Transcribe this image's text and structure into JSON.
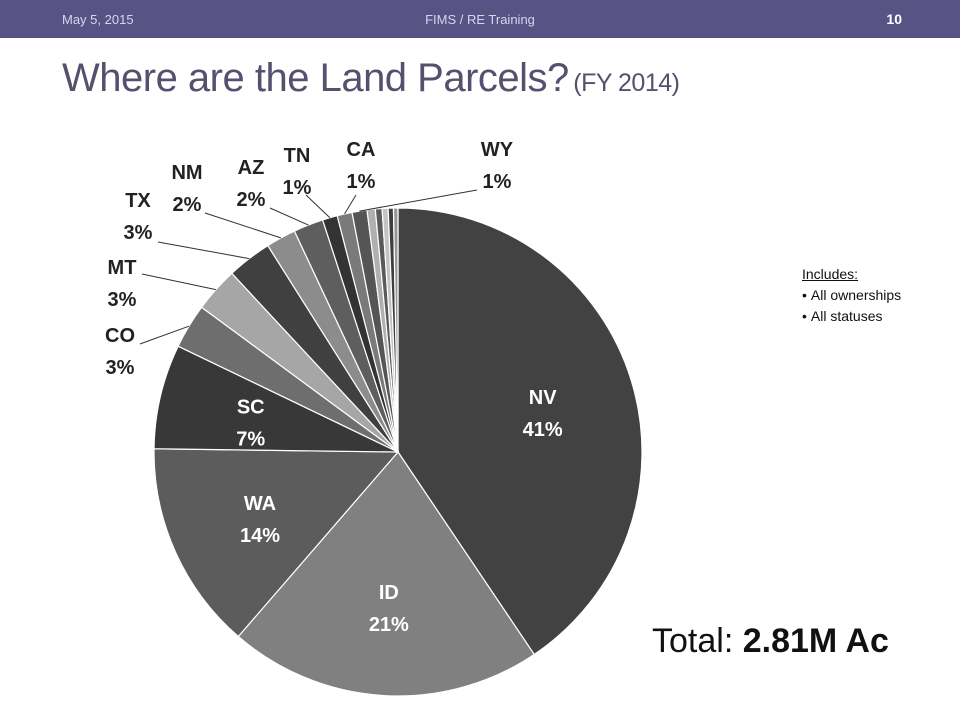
{
  "header": {
    "date": "May 5, 2015",
    "footer_title": "FIMS / RE Training",
    "page_number": "10"
  },
  "title": {
    "main": "Where are the Land Parcels?",
    "sub": "(FY 2014)"
  },
  "note": {
    "heading": "Includes",
    "heading_suffix": ":",
    "items": [
      "All ownerships",
      "All statuses"
    ]
  },
  "total": {
    "label": "Total:",
    "value": "2.81M Ac"
  },
  "chart_data": {
    "type": "pie",
    "title": "",
    "slices": [
      {
        "label": "NV",
        "value": 41,
        "display": "41%",
        "color": "#424242",
        "label_pos": "inside"
      },
      {
        "label": "ID",
        "value": 21,
        "display": "21%",
        "color": "#808080",
        "label_pos": "inside"
      },
      {
        "label": "WA",
        "value": 14,
        "display": "14%",
        "color": "#5c5c5c",
        "label_pos": "inside"
      },
      {
        "label": "SC",
        "value": 7,
        "display": "7%",
        "color": "#383838",
        "label_pos": "inside"
      },
      {
        "label": "CO",
        "value": 3,
        "display": "3%",
        "color": "#6e6e6e",
        "label_pos": "outside"
      },
      {
        "label": "MT",
        "value": 3,
        "display": "3%",
        "color": "#a6a6a6",
        "label_pos": "outside"
      },
      {
        "label": "TX",
        "value": 3,
        "display": "3%",
        "color": "#404040",
        "label_pos": "outside"
      },
      {
        "label": "NM",
        "value": 2,
        "display": "2%",
        "color": "#8c8c8c",
        "label_pos": "outside"
      },
      {
        "label": "AZ",
        "value": 2,
        "display": "2%",
        "color": "#5e5e5e",
        "label_pos": "outside"
      },
      {
        "label": "TN",
        "value": 1,
        "display": "1%",
        "color": "#333333",
        "label_pos": "outside"
      },
      {
        "label": "CA",
        "value": 1,
        "display": "1%",
        "color": "#7a7a7a",
        "label_pos": "outside"
      },
      {
        "label": "WY",
        "value": 1,
        "display": "1%",
        "color": "#555555",
        "label_pos": "outside"
      }
    ],
    "legend": "none"
  }
}
